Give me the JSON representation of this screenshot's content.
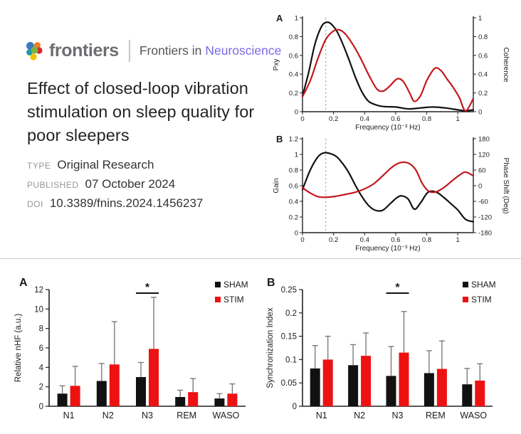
{
  "header": {
    "logo": {
      "icon": "frontiers-pinwheel-icon",
      "brand": "frontiers",
      "journal_prefix": "Frontiers in",
      "journal_name": "Neuroscience"
    },
    "title": "Effect of closed-loop vibration stimulation on sleep quality for poor sleepers",
    "meta": [
      {
        "label": "TYPE",
        "value": "Original Research"
      },
      {
        "label": "PUBLISHED",
        "value": "07 October 2024"
      },
      {
        "label": "DOI",
        "value": "10.3389/fnins.2024.1456237"
      }
    ]
  },
  "colors": {
    "series_black": "#111111",
    "line_red": "#c3191d",
    "bar_red": "#ee1111",
    "error_bar_gray": "#737373",
    "brand_purple": "#7a6ae8",
    "brand_gray": "#6d6e71",
    "dashed_reference": "#999999"
  },
  "chart_data": [
    {
      "id": "psd_coherence",
      "panel": "A",
      "type": "line",
      "xlabel": "Frequency (10⁻³ Hz)",
      "ylabel_left": "Pxy",
      "ylabel_right": "Coherence",
      "xlim": [
        0,
        1.1
      ],
      "xticks": [
        0,
        0.2,
        0.4,
        0.6,
        0.8,
        1
      ],
      "ylim_left": [
        0,
        1
      ],
      "yticks_left": [
        0,
        0.2,
        0.4,
        0.6,
        0.8,
        1
      ],
      "ylim_right": [
        0,
        1
      ],
      "yticks_right": [
        0,
        0.2,
        0.4,
        0.6,
        0.8,
        1
      ],
      "dashed_vline_x": 0.15,
      "grid": false,
      "series": [
        {
          "name": "Pxy",
          "axis": "left",
          "color": "#111111",
          "x": [
            0,
            0.04,
            0.08,
            0.12,
            0.15,
            0.18,
            0.22,
            0.26,
            0.3,
            0.34,
            0.38,
            0.42,
            0.46,
            0.52,
            0.6,
            0.68,
            0.76,
            0.84,
            0.92,
            1.0,
            1.05,
            1.1
          ],
          "y": [
            0.17,
            0.42,
            0.72,
            0.9,
            0.95,
            0.94,
            0.86,
            0.72,
            0.55,
            0.37,
            0.22,
            0.12,
            0.08,
            0.055,
            0.05,
            0.03,
            0.04,
            0.05,
            0.04,
            0.02,
            0.01,
            0.02
          ]
        },
        {
          "name": "Coherence",
          "axis": "right",
          "color": "#c3191d",
          "x": [
            0,
            0.05,
            0.1,
            0.15,
            0.2,
            0.24,
            0.28,
            0.33,
            0.38,
            0.43,
            0.48,
            0.52,
            0.56,
            0.61,
            0.65,
            0.69,
            0.72,
            0.76,
            0.8,
            0.85,
            0.89,
            0.93,
            0.97,
            1.01,
            1.05,
            1.1
          ],
          "y": [
            0.16,
            0.33,
            0.57,
            0.77,
            0.86,
            0.87,
            0.82,
            0.7,
            0.55,
            0.38,
            0.24,
            0.22,
            0.27,
            0.35,
            0.32,
            0.2,
            0.11,
            0.17,
            0.33,
            0.46,
            0.44,
            0.35,
            0.26,
            0.15,
            0.01,
            0.14
          ]
        }
      ]
    },
    {
      "id": "gain_phase",
      "panel": "B",
      "type": "line",
      "xlabel": "Frequency (10⁻³ Hz)",
      "ylabel_left": "Gain",
      "ylabel_right": "Phase Shift (Deg)",
      "xlim": [
        0,
        1.1
      ],
      "xticks": [
        0,
        0.2,
        0.4,
        0.6,
        0.8,
        1
      ],
      "ylim_left": [
        0,
        1.2
      ],
      "yticks_left": [
        0,
        0.2,
        0.4,
        0.6,
        0.8,
        1,
        1.2
      ],
      "ylim_right": [
        -180,
        180
      ],
      "yticks_right": [
        -180,
        -120,
        -60,
        0,
        60,
        120,
        180
      ],
      "dashed_vline_x": 0.15,
      "grid": false,
      "series": [
        {
          "name": "Gain",
          "axis": "left",
          "color": "#111111",
          "x": [
            0,
            0.05,
            0.1,
            0.14,
            0.18,
            0.22,
            0.26,
            0.3,
            0.35,
            0.4,
            0.44,
            0.48,
            0.52,
            0.57,
            0.61,
            0.64,
            0.68,
            0.72,
            0.76,
            0.8,
            0.83,
            0.87,
            0.91,
            0.95,
            1.0,
            1.05,
            1.1
          ],
          "y": [
            0.55,
            0.8,
            0.97,
            1.02,
            1.01,
            0.97,
            0.88,
            0.76,
            0.57,
            0.41,
            0.32,
            0.28,
            0.29,
            0.38,
            0.45,
            0.47,
            0.43,
            0.3,
            0.38,
            0.5,
            0.53,
            0.51,
            0.45,
            0.38,
            0.29,
            0.17,
            0.14
          ]
        },
        {
          "name": "Phase Shift",
          "axis": "right",
          "color": "#c3191d",
          "x": [
            0,
            0.05,
            0.1,
            0.16,
            0.22,
            0.28,
            0.34,
            0.4,
            0.46,
            0.52,
            0.57,
            0.61,
            0.65,
            0.69,
            0.73,
            0.77,
            0.81,
            0.85,
            0.89,
            0.93,
            0.97,
            1.01,
            1.05,
            1.1
          ],
          "y": [
            -8,
            -28,
            -42,
            -44,
            -40,
            -33,
            -25,
            -12,
            8,
            40,
            68,
            84,
            90,
            84,
            60,
            10,
            -20,
            -25,
            -15,
            2,
            22,
            40,
            52,
            38
          ]
        }
      ]
    },
    {
      "id": "relative_nhf",
      "panel": "A",
      "type": "bar",
      "categories": [
        "N1",
        "N2",
        "N3",
        "REM",
        "WASO"
      ],
      "ylabel": "Relative nHF (a.u.)",
      "ylim": [
        0,
        12
      ],
      "yticks": [
        0,
        2,
        4,
        6,
        8,
        10,
        12
      ],
      "legend_position": "top-right",
      "series": [
        {
          "name": "SHAM",
          "color": "#111111",
          "values": [
            1.3,
            2.6,
            3.0,
            0.95,
            0.8
          ],
          "errors_upper": [
            0.8,
            1.8,
            1.5,
            0.7,
            0.5
          ]
        },
        {
          "name": "STIM",
          "color": "#ee1111",
          "values": [
            2.1,
            4.3,
            5.9,
            1.45,
            1.3
          ],
          "errors_upper": [
            2.0,
            4.4,
            5.3,
            1.4,
            1.0
          ]
        }
      ],
      "significance": [
        {
          "category": "N3",
          "marker": "*"
        }
      ]
    },
    {
      "id": "synchronization_index",
      "panel": "B",
      "type": "bar",
      "categories": [
        "N1",
        "N2",
        "N3",
        "REM",
        "WASO"
      ],
      "ylabel": "Synchronization Index",
      "ylim": [
        0,
        0.25
      ],
      "yticks": [
        0,
        0.05,
        0.1,
        0.15,
        0.2,
        0.25
      ],
      "legend_position": "top-right",
      "series": [
        {
          "name": "SHAM",
          "color": "#111111",
          "values": [
            0.081,
            0.088,
            0.065,
            0.071,
            0.047
          ],
          "errors_upper": [
            0.049,
            0.044,
            0.063,
            0.048,
            0.034
          ]
        },
        {
          "name": "STIM",
          "color": "#ee1111",
          "values": [
            0.1,
            0.108,
            0.115,
            0.08,
            0.055
          ],
          "errors_upper": [
            0.05,
            0.049,
            0.088,
            0.06,
            0.036
          ]
        }
      ],
      "significance": [
        {
          "category": "N3",
          "marker": "*"
        }
      ]
    }
  ]
}
